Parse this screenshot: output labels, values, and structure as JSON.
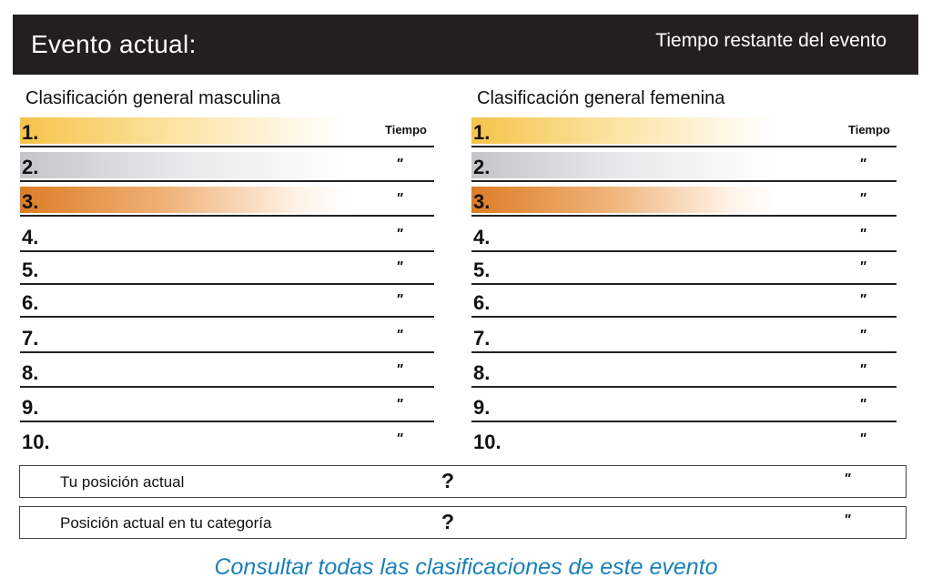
{
  "header": {
    "event_label": "Evento actual:",
    "time_remaining_label": "Tiempo restante del evento"
  },
  "colors": {
    "header_bg": "#231f20",
    "gold": "#f6c34a",
    "silver": "#c4c5c8",
    "bronze": "#dc7d26",
    "link": "#1a81b8"
  },
  "men": {
    "title": "Clasificación general masculina",
    "time_header": "Tiempo",
    "ranks": [
      "1.",
      "2.",
      "3.",
      "4.",
      "5.",
      "6.",
      "7.",
      "8.",
      "9.",
      "10."
    ],
    "ditto": "\""
  },
  "women": {
    "title": "Clasificación general femenina",
    "time_header": "Tiempo",
    "ranks": [
      "1.",
      "2.",
      "3.",
      "4.",
      "5.",
      "6.",
      "7.",
      "8.",
      "9.",
      "10."
    ],
    "ditto": "\""
  },
  "current_position": {
    "label": "Tu posición actual",
    "value": "?",
    "ditto": "\""
  },
  "category_position": {
    "label": "Posición actual en tu categoría",
    "value": "?",
    "ditto": "\""
  },
  "link_text": "Consultar todas las clasificaciones de este evento"
}
